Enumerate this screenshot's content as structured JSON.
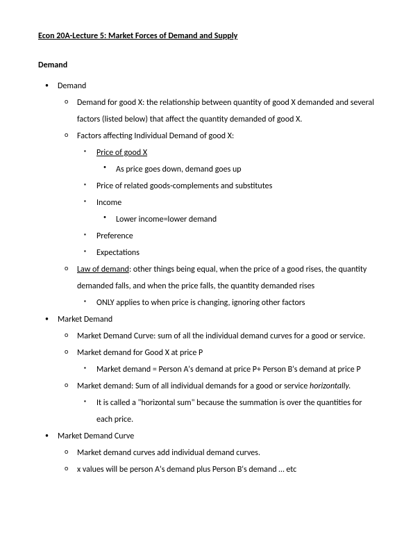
{
  "title": "Econ 20A-Lecture 5: Market Forces of Demand and Supply",
  "section_heading": "Demand",
  "b1": {
    "label": "Demand",
    "c1": "Demand for good X: the relationship between quantity of good X demanded and several factors (listed below) that affect the quantity demanded of good X.",
    "c2": {
      "label": "Factors affecting Individual Demand of good X:",
      "f1": {
        "label": "Price of good X",
        "sub": "As price goes down, demand goes up"
      },
      "f2": "Price of related goods-complements and substitutes",
      "f3": {
        "label": "Income",
        "sub": "Lower income=lower demand"
      },
      "f4": "Preference",
      "f5": "Expectations"
    },
    "c3": {
      "term": "Law of demand",
      "rest": ": other things being equal, when the price of a good rises, the quantity demanded falls, and when the price falls, the quantity demanded rises",
      "sub": "ONLY applies to when price is changing, ignoring other factors"
    }
  },
  "b2": {
    "label": "Market Demand",
    "c1": "Market Demand Curve: sum of all the individual demand curves for a good or service.",
    "c2": {
      "label": "Market demand for Good X at price P",
      "sub": "Market demand = Person A's demand at price P+ Person B's demand at price P"
    },
    "c3": {
      "pre": "Market demand: Sum of all individual demands for a good or service ",
      "italic": "horizontally.",
      "sub": "It is called a \"horizontal sum\" because the summation is over the quantities for each price."
    }
  },
  "b3": {
    "label": "Market Demand Curve",
    "c1": "Market demand curves add individual demand curves.",
    "c2": "x values will be person A's demand plus Person B's demand … etc"
  }
}
